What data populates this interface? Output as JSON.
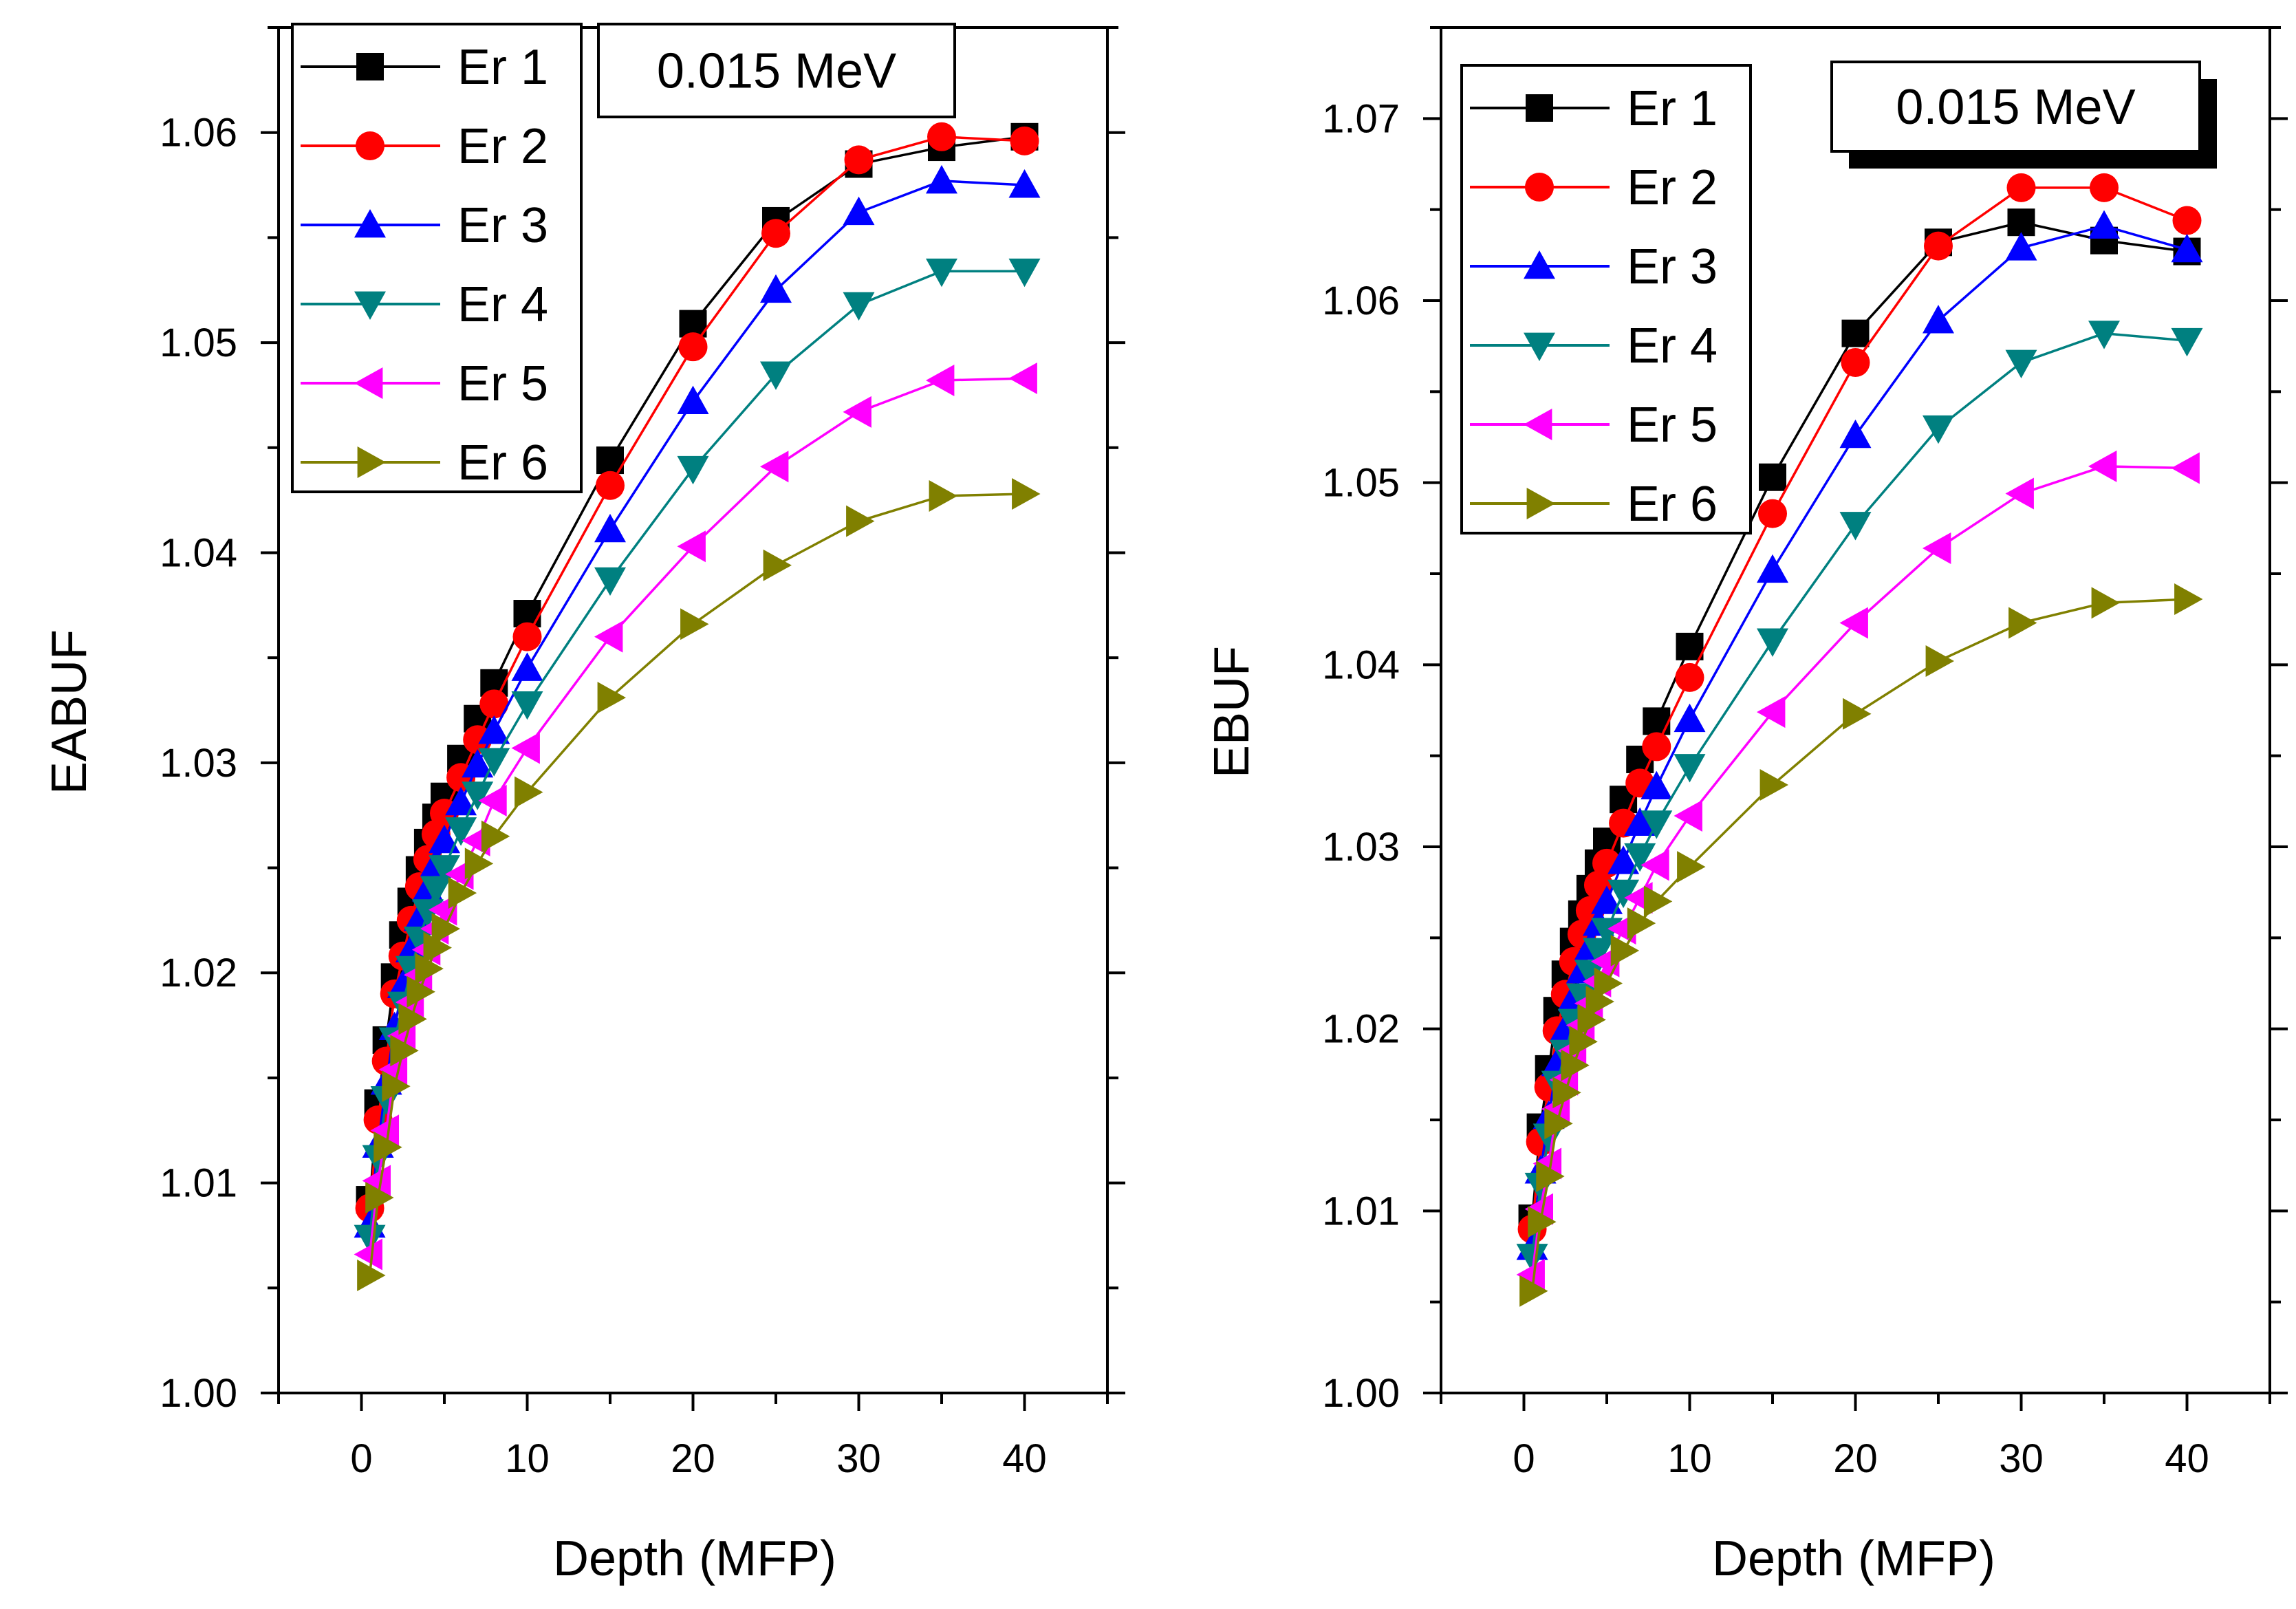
{
  "chart_data": [
    {
      "type": "line",
      "title": "",
      "annotation": "0.015 MeV",
      "xlabel": "Depth (MFP)",
      "ylabel": "EABUF",
      "xlim": [
        -5,
        45
      ],
      "ylim": [
        1.0,
        1.065
      ],
      "xticks": [
        0,
        10,
        20,
        30,
        40
      ],
      "xtick_labels": [
        "0",
        "10",
        "20",
        "30",
        "40"
      ],
      "yticks": [
        1.0,
        1.01,
        1.02,
        1.03,
        1.04,
        1.05,
        1.06
      ],
      "ytick_labels": [
        "1.00",
        "1.01",
        "1.02",
        "1.03",
        "1.04",
        "1.05",
        "1.06"
      ],
      "legend_position": "top-left",
      "x": [
        0.5,
        1,
        1.5,
        2,
        2.5,
        3,
        3.5,
        4,
        4.5,
        5,
        6,
        7,
        8,
        10,
        15,
        20,
        25,
        30,
        35,
        40
      ],
      "series": [
        {
          "name": "Er 1",
          "color": "#000000",
          "marker": "square",
          "values": [
            1.0092,
            1.0138,
            1.0168,
            1.0198,
            1.0218,
            1.0234,
            1.0249,
            1.0262,
            1.0274,
            1.0284,
            1.0302,
            1.0321,
            1.0338,
            1.0371,
            1.0444,
            1.0509,
            1.0558,
            1.0585,
            1.0593,
            1.0598
          ]
        },
        {
          "name": "Er 2",
          "color": "#ff0000",
          "marker": "circle",
          "values": [
            1.0088,
            1.013,
            1.0158,
            1.019,
            1.0208,
            1.0225,
            1.0241,
            1.0254,
            1.0266,
            1.0276,
            1.0293,
            1.0311,
            1.0328,
            1.036,
            1.0432,
            1.0498,
            1.0552,
            1.0587,
            1.0598,
            1.0596
          ]
        },
        {
          "name": "Er 3",
          "color": "#0000ff",
          "marker": "triangle-up",
          "values": [
            1.008,
            1.0118,
            1.0148,
            1.0174,
            1.0194,
            1.0211,
            1.0226,
            1.024,
            1.0252,
            1.0263,
            1.0281,
            1.0299,
            1.0315,
            1.0345,
            1.0411,
            1.0472,
            1.0525,
            1.0562,
            1.0577,
            1.0575
          ]
        },
        {
          "name": "Er 4",
          "color": "#008080",
          "marker": "triangle-down",
          "values": [
            1.0074,
            1.0112,
            1.014,
            1.0168,
            1.0185,
            1.0202,
            1.0216,
            1.0229,
            1.024,
            1.025,
            1.0268,
            1.0285,
            1.0301,
            1.0328,
            1.0387,
            1.044,
            1.0485,
            1.0518,
            1.0534,
            1.0534
          ]
        },
        {
          "name": "Er 5",
          "color": "#ff00ff",
          "marker": "triangle-left",
          "values": [
            1.0066,
            1.0101,
            1.0125,
            1.0154,
            1.017,
            1.0186,
            1.0199,
            1.0211,
            1.0221,
            1.023,
            1.0247,
            1.0263,
            1.0282,
            1.0307,
            1.036,
            1.0403,
            1.0441,
            1.0467,
            1.0482,
            1.0483
          ]
        },
        {
          "name": "Er 6",
          "color": "#808000",
          "marker": "triangle-right",
          "values": [
            1.0056,
            1.0093,
            1.0117,
            1.0146,
            1.0163,
            1.0178,
            1.0191,
            1.0202,
            1.0212,
            1.0221,
            1.0238,
            1.0252,
            1.0265,
            1.0286,
            1.0331,
            1.0366,
            1.0394,
            1.0415,
            1.0427,
            1.0428
          ]
        }
      ]
    },
    {
      "type": "line",
      "title": "",
      "annotation": "0.015 MeV",
      "xlabel": "Depth (MFP)",
      "ylabel": "EBUF",
      "xlim": [
        -5,
        45
      ],
      "ylim": [
        1.0,
        1.075
      ],
      "xticks": [
        0,
        10,
        20,
        30,
        40
      ],
      "xtick_labels": [
        "0",
        "10",
        "20",
        "30",
        "40"
      ],
      "yticks": [
        1.0,
        1.01,
        1.02,
        1.03,
        1.04,
        1.05,
        1.06,
        1.07
      ],
      "ytick_labels": [
        "1.00",
        "1.01",
        "1.02",
        "1.03",
        "1.04",
        "1.05",
        "1.06",
        "1.07"
      ],
      "legend_position": "top-left",
      "x": [
        0.5,
        1,
        1.5,
        2,
        2.5,
        3,
        3.5,
        4,
        4.5,
        5,
        6,
        7,
        8,
        10,
        15,
        20,
        25,
        30,
        35,
        40
      ],
      "series": [
        {
          "name": "Er 1",
          "color": "#000000",
          "marker": "square",
          "values": [
            1.0096,
            1.0146,
            1.0178,
            1.021,
            1.023,
            1.0248,
            1.0263,
            1.0277,
            1.0291,
            1.0303,
            1.0326,
            1.0348,
            1.0369,
            1.041,
            1.0503,
            1.0582,
            1.0632,
            1.0643,
            1.0633,
            1.0627
          ]
        },
        {
          "name": "Er 2",
          "color": "#ff0000",
          "marker": "circle",
          "values": [
            1.009,
            1.0138,
            1.0168,
            1.0199,
            1.0219,
            1.0237,
            1.0252,
            1.0265,
            1.0279,
            1.0291,
            1.0313,
            1.0335,
            1.0355,
            1.0393,
            1.0483,
            1.0566,
            1.063,
            1.0662,
            1.0662,
            1.0644
          ]
        },
        {
          "name": "Er 3",
          "color": "#0000ff",
          "marker": "triangle-up",
          "values": [
            1.008,
            1.0122,
            1.0152,
            1.0181,
            1.02,
            1.0217,
            1.0232,
            1.0245,
            1.0258,
            1.027,
            1.0292,
            1.0313,
            1.0333,
            1.037,
            1.0452,
            1.0526,
            1.0589,
            1.0629,
            1.0641,
            1.0628
          ]
        },
        {
          "name": "Er 4",
          "color": "#008080",
          "marker": "triangle-down",
          "values": [
            1.0075,
            1.0114,
            1.0141,
            1.017,
            1.0187,
            1.0204,
            1.0218,
            1.0231,
            1.0243,
            1.0254,
            1.0275,
            1.0295,
            1.0313,
            1.0344,
            1.0413,
            1.0477,
            1.053,
            1.0566,
            1.0582,
            1.0578
          ]
        },
        {
          "name": "Er 5",
          "color": "#ff00ff",
          "marker": "triangle-left",
          "values": [
            1.0065,
            1.0101,
            1.0126,
            1.0156,
            1.0172,
            1.0188,
            1.0202,
            1.0214,
            1.0226,
            1.0237,
            1.0255,
            1.0272,
            1.029,
            1.0317,
            1.0374,
            1.0423,
            1.0464,
            1.0494,
            1.0509,
            1.0508
          ]
        },
        {
          "name": "Er 6",
          "color": "#808000",
          "marker": "triangle-right",
          "values": [
            1.0056,
            1.0094,
            1.0119,
            1.0148,
            1.0165,
            1.018,
            1.0193,
            1.0205,
            1.0215,
            1.0225,
            1.0243,
            1.0258,
            1.027,
            1.0289,
            1.0334,
            1.0373,
            1.0402,
            1.0423,
            1.0434,
            1.0436
          ]
        }
      ]
    }
  ]
}
